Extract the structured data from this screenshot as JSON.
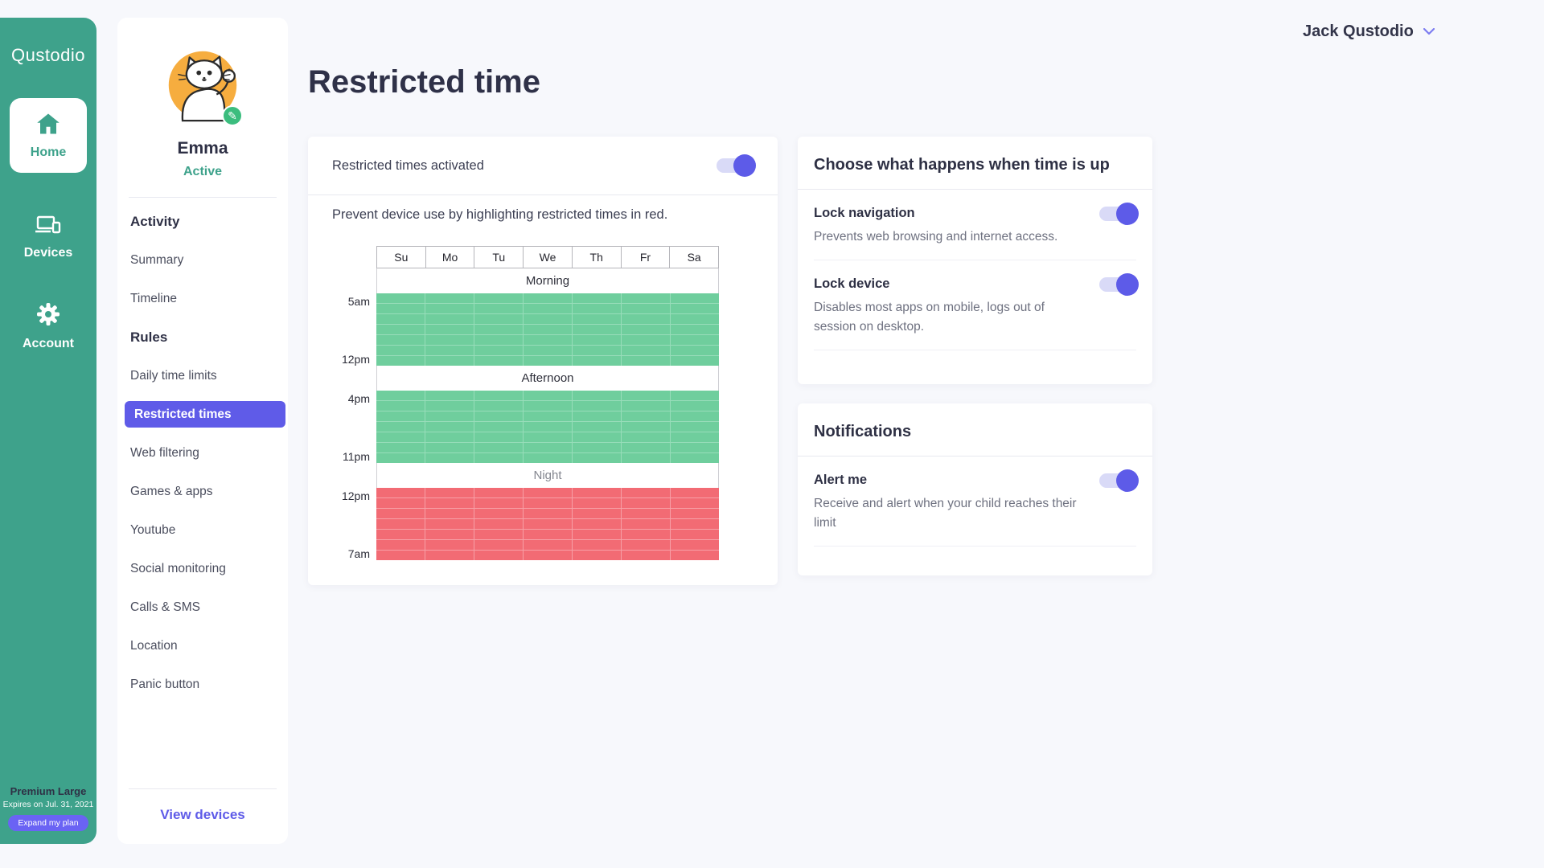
{
  "brand": {
    "logo": "Qustodio"
  },
  "nav": {
    "items": [
      {
        "label": "Home"
      },
      {
        "label": "Devices"
      },
      {
        "label": "Account"
      }
    ]
  },
  "plan": {
    "name": "Premium Large",
    "expires": "Expires on Jul. 31, 2021",
    "cta": "Expand my plan"
  },
  "profile": {
    "name": "Emma",
    "status": "Active",
    "menu": [
      {
        "label": "Activity",
        "type": "header"
      },
      {
        "label": "Summary"
      },
      {
        "label": "Timeline"
      },
      {
        "label": "Rules",
        "type": "header"
      },
      {
        "label": "Daily time limits"
      },
      {
        "label": "Restricted times",
        "selected": true
      },
      {
        "label": "Web filtering"
      },
      {
        "label": "Games & apps"
      },
      {
        "label": "Youtube"
      },
      {
        "label": "Social monitoring"
      },
      {
        "label": "Calls & SMS"
      },
      {
        "label": "Location"
      },
      {
        "label": "Panic button"
      }
    ],
    "view_devices": "View devices"
  },
  "header": {
    "user": "Jack Qustodio"
  },
  "page": {
    "title": "Restricted time"
  },
  "schedule_card": {
    "activate_label": "Restricted times activated",
    "activate_on": true,
    "caption": "Prevent device use by highlighting restricted times in red."
  },
  "schedule": {
    "days": [
      "Su",
      "Mo",
      "Tu",
      "We",
      "Th",
      "Fr",
      "Sa"
    ],
    "sections": [
      {
        "label": "Morning",
        "start": "5am",
        "end": "12pm",
        "rows": 7,
        "state": "allowed",
        "color": "#6FCE9D",
        "gap": "#98DDBA",
        "muted": false
      },
      {
        "label": "Afternoon",
        "start": "4pm",
        "end": "11pm",
        "rows": 7,
        "state": "allowed",
        "color": "#6FCE9D",
        "gap": "#98DDBA",
        "muted": false
      },
      {
        "label": "Night",
        "start": "12pm",
        "end": "7am",
        "rows": 7,
        "state": "restricted",
        "color": "#F26B74",
        "gap": "#F7A0A7",
        "muted": true
      }
    ]
  },
  "timeup": {
    "title": "Choose what happens when time is up",
    "options": [
      {
        "label": "Lock navigation",
        "description": "Prevents web browsing and internet access.",
        "on": true
      },
      {
        "label": "Lock device",
        "description": "Disables most apps on mobile,  logs out of session on desktop.",
        "on": true
      }
    ]
  },
  "notifications": {
    "title": "Notifications",
    "options": [
      {
        "label": "Alert me",
        "description": "Receive and alert when your child  reaches their limit",
        "on": true
      }
    ]
  },
  "colors": {
    "brand_teal": "#3EA28B",
    "accent_purple": "#5E5BE8",
    "toggle_track": "#D9DAF7",
    "allowed_green": "#6FCE9D",
    "restricted_red": "#F26B74",
    "avatar_orange": "#F6AD3F",
    "badge_green": "#3BBD7E"
  }
}
